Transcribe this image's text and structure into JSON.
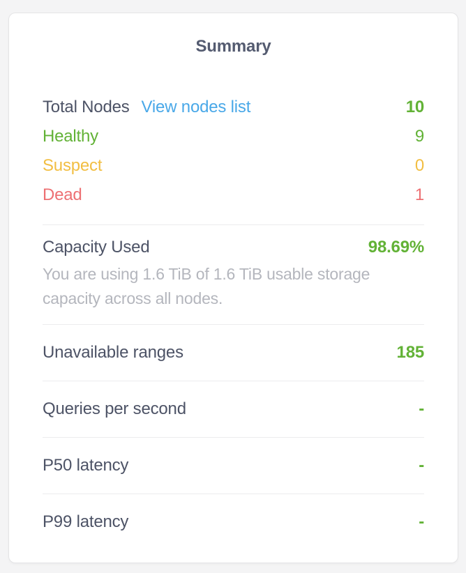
{
  "card": {
    "title": "Summary",
    "nodes": {
      "total": {
        "label": "Total Nodes",
        "link_label": "View nodes list",
        "value": "10"
      },
      "statuses": [
        {
          "label": "Healthy",
          "value": "9"
        },
        {
          "label": "Suspect",
          "value": "0"
        },
        {
          "label": "Dead",
          "value": "1"
        }
      ]
    },
    "capacity": {
      "label": "Capacity Used",
      "value": "98.69%",
      "description": "You are using 1.6 TiB of 1.6 TiB usable storage capacity across all nodes."
    },
    "metrics": [
      {
        "label": "Unavailable ranges",
        "value": "185"
      },
      {
        "label": "Queries per second",
        "value": "-"
      },
      {
        "label": "P50 latency",
        "value": "-"
      },
      {
        "label": "P99 latency",
        "value": "-"
      }
    ]
  },
  "colors": {
    "healthy_green": "#62b236",
    "suspect_yellow": "#f2be42",
    "dead_red": "#ed7073",
    "link_blue": "#49a8e8",
    "label_slate": "#4d5366",
    "muted_gray": "#b4b6bd"
  }
}
